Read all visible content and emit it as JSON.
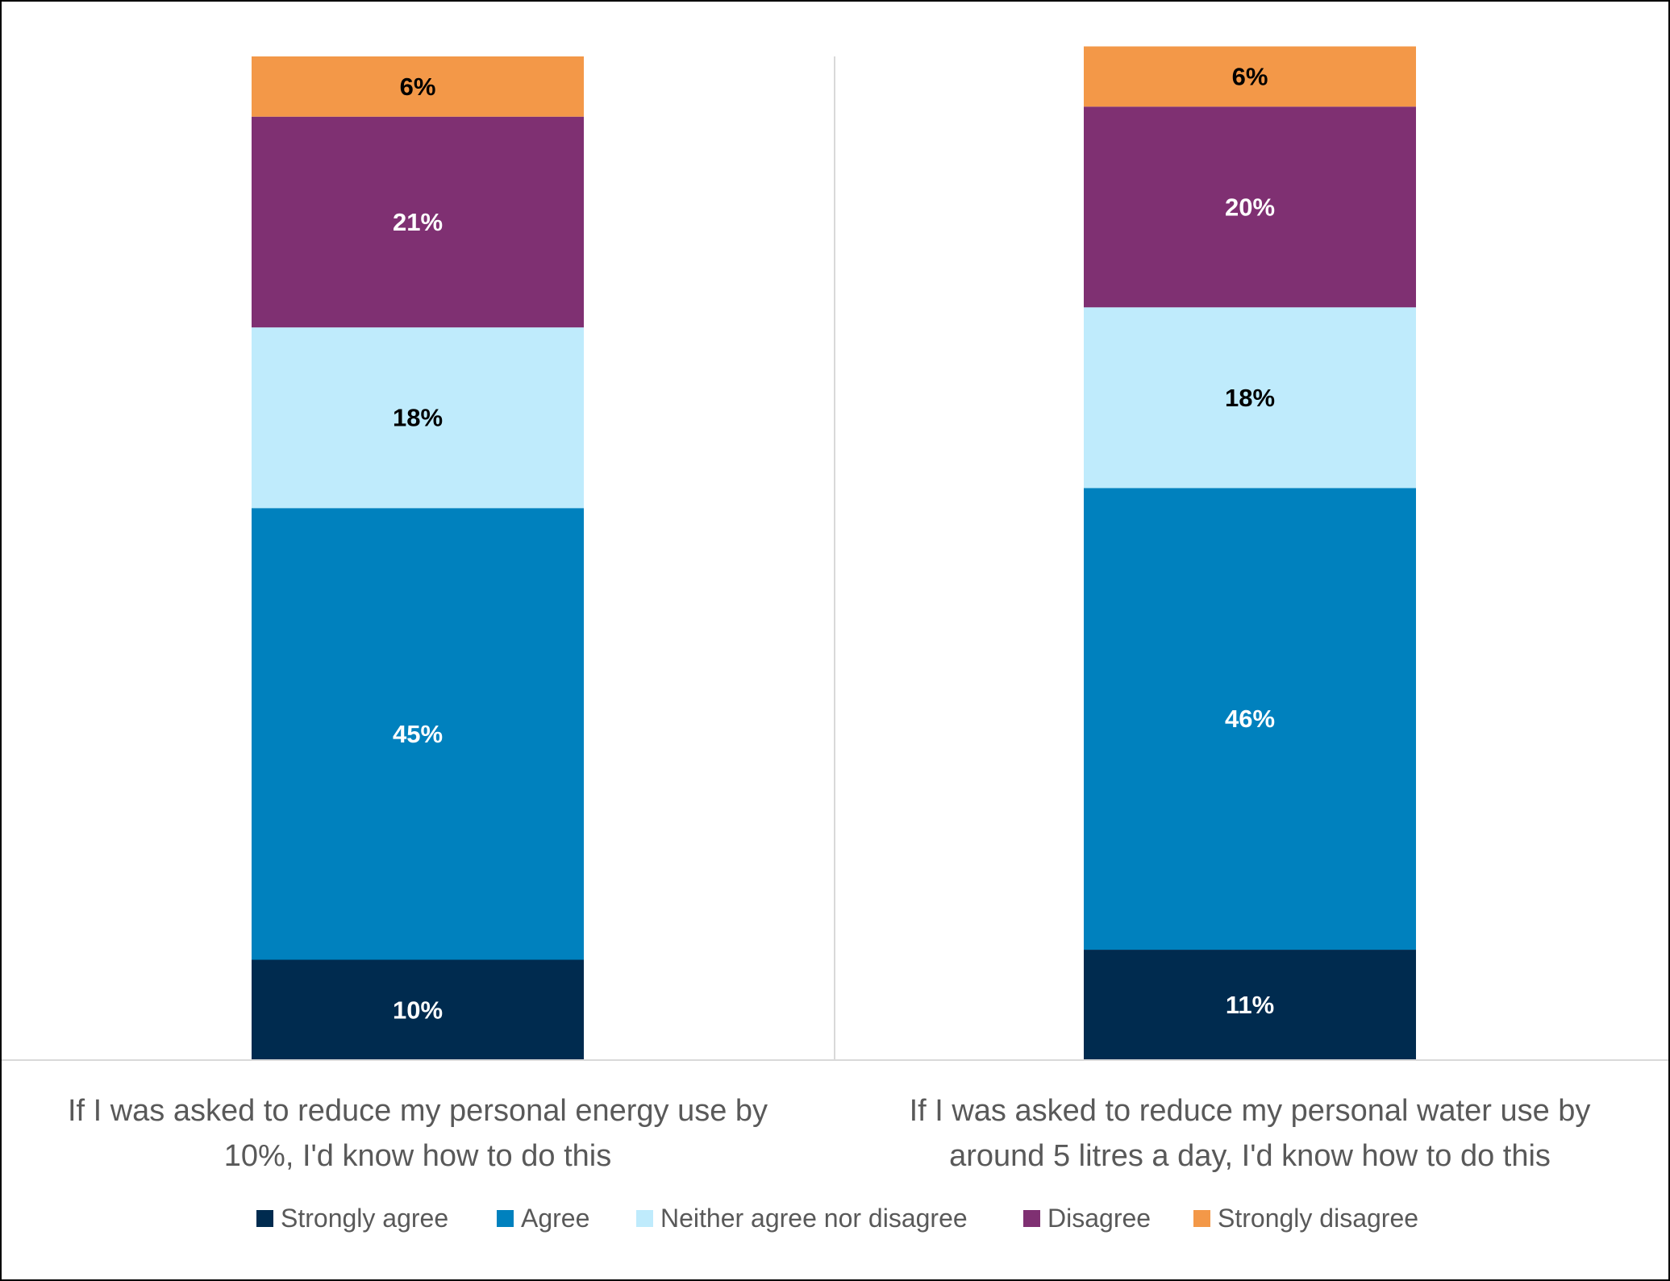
{
  "chart_data": {
    "type": "bar",
    "stacked": true,
    "percent_stacked": true,
    "categories": [
      [
        "If I was asked to reduce my personal energy use by",
        "10%, I'd know how to do this"
      ],
      [
        "If I was asked to reduce my personal water use by",
        "around 5 litres a day, I'd know how to do this"
      ]
    ],
    "series": [
      {
        "name": "Strongly agree",
        "values": [
          10,
          11
        ],
        "labels": [
          "10%",
          "11%"
        ],
        "color": "#002B4F",
        "label_color": "#FFFFFF"
      },
      {
        "name": "Agree",
        "values": [
          45,
          46
        ],
        "labels": [
          "45%",
          "46%"
        ],
        "color": "#0081BE",
        "label_color": "#FFFFFF"
      },
      {
        "name": "Neither agree nor disagree",
        "values": [
          18,
          18
        ],
        "labels": [
          "18%",
          "18%"
        ],
        "color": "#BFEBFC",
        "label_color": "#000000"
      },
      {
        "name": "Disagree",
        "values": [
          21,
          20
        ],
        "labels": [
          "21%",
          "20%"
        ],
        "color": "#7F3072",
        "label_color": "#FFFFFF"
      },
      {
        "name": "Strongly disagree",
        "values": [
          6,
          6
        ],
        "labels": [
          "6%",
          "6%"
        ],
        "color": "#F39848",
        "label_color": "#000000"
      }
    ],
    "ylim": [
      0,
      100
    ],
    "axis_line_color": "#D9D9D9",
    "legend_position": "bottom",
    "grid": false
  }
}
